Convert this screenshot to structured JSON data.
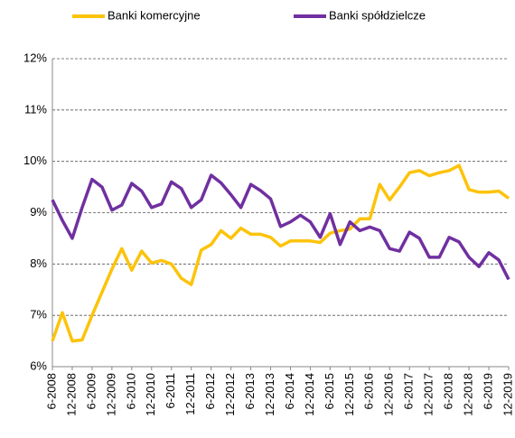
{
  "chart_data": {
    "type": "line",
    "categories": [
      "6-2008",
      null,
      "12-2008",
      null,
      "6-2009",
      null,
      "12-2009",
      null,
      "6-2010",
      null,
      "12-2010",
      null,
      "6-2011",
      null,
      "12-2011",
      null,
      "6-2012",
      null,
      "12-2012",
      null,
      "6-2013",
      null,
      "12-2013",
      null,
      "6-2014",
      null,
      "12-2014",
      null,
      "6-2015",
      null,
      "12-2015",
      null,
      "6-2016",
      null,
      "12-2016",
      null,
      "6-2017",
      null,
      "12-2017",
      null,
      "6-2018",
      null,
      "12-2018",
      null,
      "6-2019",
      null,
      "12-2019"
    ],
    "series": [
      {
        "name": "Banki komercyjne",
        "color": "#fcc30b",
        "values": [
          6.5,
          7.05,
          6.5,
          6.52,
          7.0,
          7.45,
          7.9,
          8.3,
          7.88,
          8.25,
          8.02,
          8.07,
          8.0,
          7.72,
          7.6,
          8.27,
          8.38,
          8.65,
          8.5,
          8.7,
          8.58,
          8.58,
          8.52,
          8.35,
          8.45,
          8.45,
          8.45,
          8.42,
          8.6,
          8.65,
          8.68,
          8.88,
          8.88,
          9.55,
          9.25,
          9.5,
          9.78,
          9.82,
          9.72,
          9.78,
          9.82,
          9.92,
          9.45,
          9.4,
          9.4,
          9.42,
          9.28
        ]
      },
      {
        "name": "Banki spółdzielcze",
        "color": "#7030a0",
        "values": [
          9.25,
          8.85,
          8.5,
          9.1,
          9.65,
          9.5,
          9.05,
          9.15,
          9.57,
          9.42,
          9.1,
          9.17,
          9.6,
          9.47,
          9.1,
          9.25,
          9.73,
          9.58,
          9.35,
          9.1,
          9.55,
          9.43,
          9.27,
          8.73,
          8.82,
          8.95,
          8.82,
          8.52,
          8.98,
          8.38,
          8.82,
          8.65,
          8.72,
          8.65,
          8.3,
          8.25,
          8.62,
          8.5,
          8.13,
          8.13,
          8.52,
          8.43,
          8.13,
          7.95,
          8.22,
          8.08,
          7.7
        ]
      }
    ],
    "ylim": [
      6,
      12
    ],
    "yticks": [
      {
        "value": 6,
        "label": "6%"
      },
      {
        "value": 7,
        "label": "7%"
      },
      {
        "value": 8,
        "label": "8%"
      },
      {
        "value": 9,
        "label": "9%"
      },
      {
        "value": 10,
        "label": "10%"
      },
      {
        "value": 11,
        "label": "11%"
      },
      {
        "value": 12,
        "label": "12%"
      }
    ],
    "grid": true
  }
}
